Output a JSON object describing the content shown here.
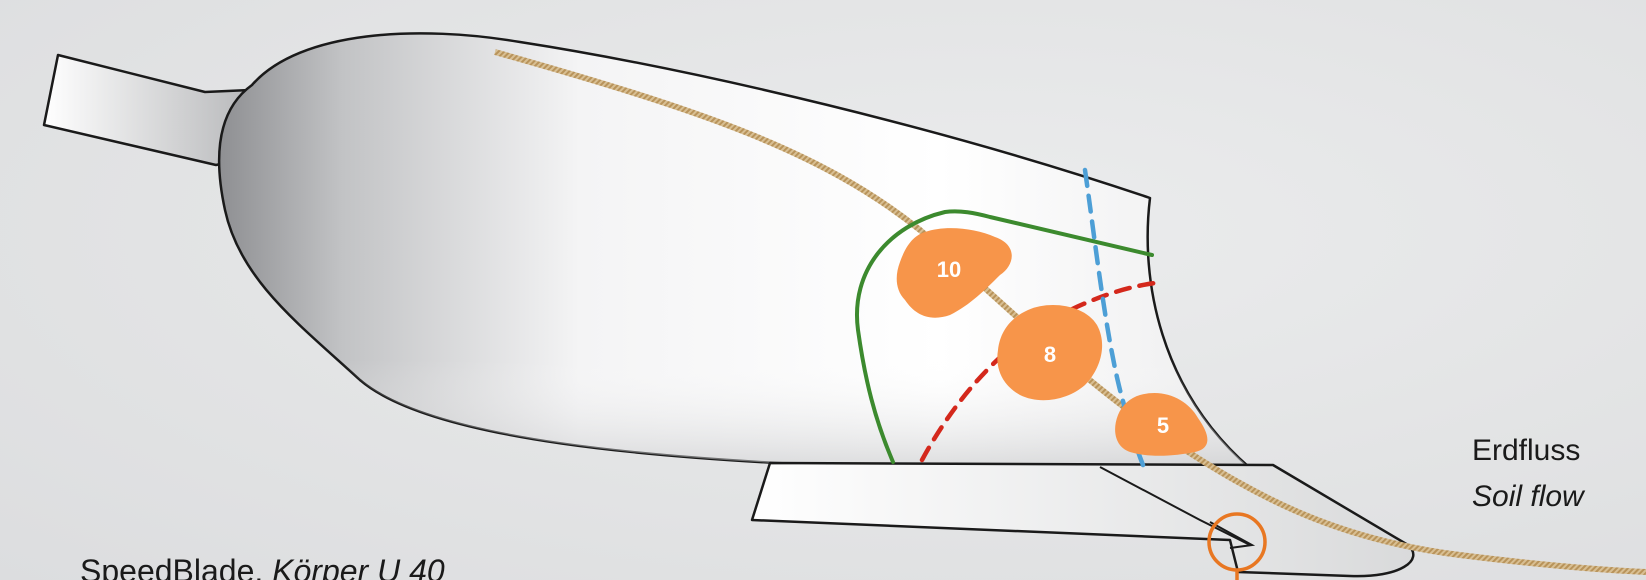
{
  "labels": {
    "flow_de": "Erdfluss",
    "flow_en": "Soil flow",
    "caption_main": "SpeedBlade, ",
    "caption_italic": "Körper U 40"
  },
  "markers": [
    {
      "id": "marker-10",
      "value": "10"
    },
    {
      "id": "marker-8",
      "value": "8"
    },
    {
      "id": "marker-5",
      "value": "5"
    }
  ],
  "colors": {
    "background": "#e4e5e6",
    "body_outline": "#1a1a1a",
    "soil_path": "#c9a46a",
    "green_line": "#3c8a2e",
    "red_dashed": "#d4281c",
    "blue_dashed": "#4d9fd6",
    "marker_fill": "#f7954a",
    "highlight_ring": "#e87722"
  }
}
